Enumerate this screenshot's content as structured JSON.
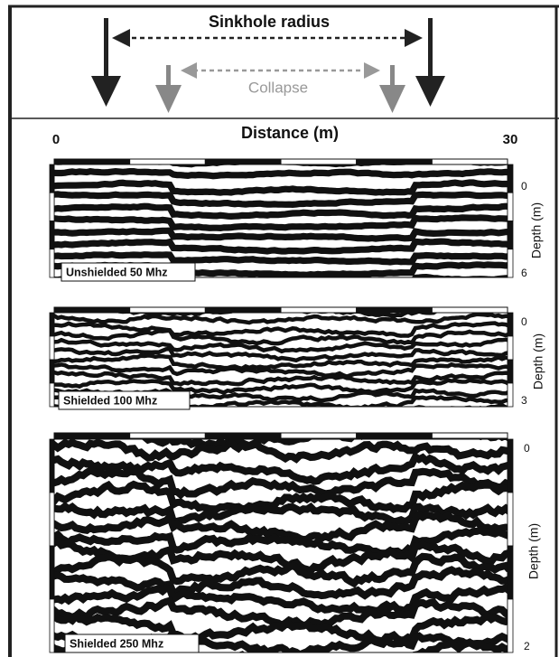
{
  "header": {
    "sinkhole_label": "Sinkhole radius",
    "collapse_label": "Collapse"
  },
  "axis": {
    "title": "Distance (m)",
    "start": "0",
    "end": "30"
  },
  "panels": [
    {
      "label": "Unshielded 50 Mhz",
      "depth_top": "0",
      "depth_bottom": "6",
      "depth_title": "Depth (m)"
    },
    {
      "label": "Shielded 100 Mhz",
      "depth_top": "0",
      "depth_bottom": "3",
      "depth_title": "Depth (m)"
    },
    {
      "label": "Shielded 250 Mhz",
      "depth_top": "0",
      "depth_bottom": "2",
      "depth_title": "Depth (m)"
    }
  ]
}
